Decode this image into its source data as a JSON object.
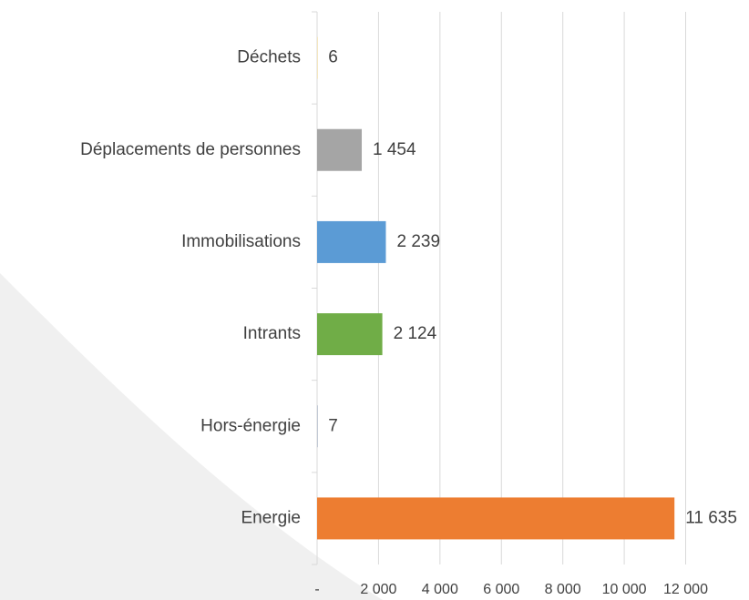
{
  "chart_data": {
    "type": "bar",
    "orientation": "horizontal",
    "categories": [
      "Déchets",
      "Déplacements de personnes",
      "Immobilisations",
      "Intrants",
      "Hors-énergie",
      "Energie"
    ],
    "values": [
      6,
      1454,
      2239,
      2124,
      7,
      11635
    ],
    "value_labels": [
      "6",
      "1 454",
      "2 239",
      "2 124",
      "7",
      "11 635"
    ],
    "colors": [
      "#ffc000",
      "#a5a5a5",
      "#5b9bd5",
      "#70ad47",
      "#264478",
      "#ed7d31"
    ],
    "xlim": [
      0,
      12000
    ],
    "xticks": [
      {
        "value": 0,
        "label": "-"
      },
      {
        "value": 2000,
        "label": "2 000"
      },
      {
        "value": 4000,
        "label": "4 000"
      },
      {
        "value": 6000,
        "label": "6 000"
      },
      {
        "value": 8000,
        "label": "8 000"
      },
      {
        "value": 10000,
        "label": "10 000"
      },
      {
        "value": 12000,
        "label": "12 000"
      }
    ],
    "grid": true
  }
}
